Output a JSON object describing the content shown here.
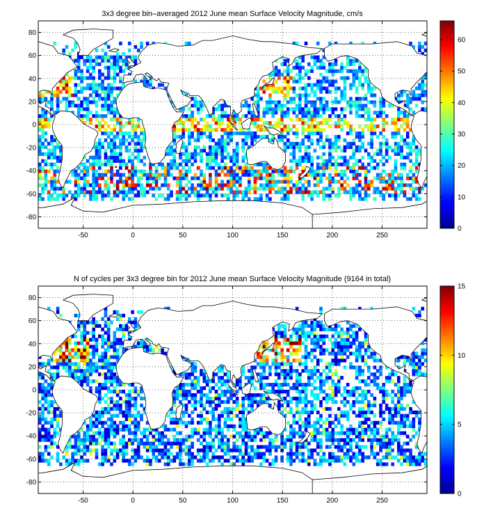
{
  "chart_data": [
    {
      "type": "heatmap",
      "title": "3x3 degree bin–averaged 2012 June mean Surface Velocity Magnitude, cm/s",
      "x_ticks": [
        "-50",
        "0",
        "50",
        "100",
        "150",
        "200",
        "250"
      ],
      "x_tick_values": [
        -50,
        0,
        50,
        100,
        150,
        200,
        250
      ],
      "y_ticks": [
        "80",
        "60",
        "40",
        "20",
        "0",
        "-20",
        "-40",
        "-60",
        "-80"
      ],
      "y_tick_values": [
        80,
        60,
        40,
        20,
        0,
        -20,
        -40,
        -60,
        -80
      ],
      "xlim": [
        -95,
        295
      ],
      "ylim": [
        -90,
        90
      ],
      "grid": true,
      "colormap": "jet",
      "colorbar_ticks": [
        "60",
        "50",
        "40",
        "30",
        "20",
        "10",
        "0"
      ],
      "colorbar_tick_values": [
        60,
        50,
        40,
        30,
        20,
        10,
        0
      ],
      "clim": [
        0,
        66
      ]
    },
    {
      "type": "heatmap",
      "title": "N of cycles per 3x3 degree bin for 2012 June mean Surface Velocity Magnitude (9164 in total)",
      "x_ticks": [
        "-50",
        "0",
        "50",
        "100",
        "150",
        "200",
        "250"
      ],
      "x_tick_values": [
        -50,
        0,
        50,
        100,
        150,
        200,
        250
      ],
      "y_ticks": [
        "80",
        "60",
        "40",
        "20",
        "0",
        "-20",
        "-40",
        "-60",
        "-80"
      ],
      "y_tick_values": [
        80,
        60,
        40,
        20,
        0,
        -20,
        -40,
        -60,
        -80
      ],
      "xlim": [
        -95,
        295
      ],
      "ylim": [
        -90,
        90
      ],
      "grid": true,
      "colormap": "jet",
      "colorbar_ticks": [
        "15",
        "10",
        "5",
        "0"
      ],
      "colorbar_tick_values": [
        15,
        10,
        5,
        0
      ],
      "clim": [
        0,
        15
      ]
    }
  ]
}
